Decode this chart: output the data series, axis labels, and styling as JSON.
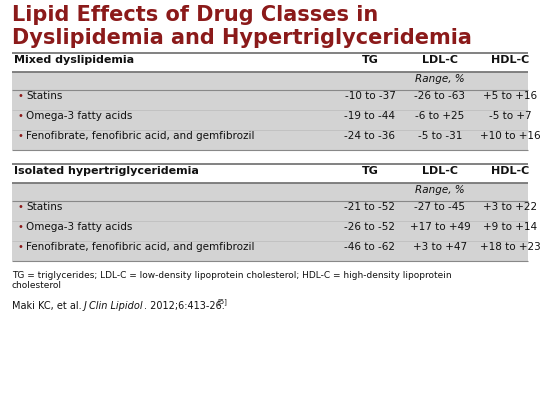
{
  "title_line1": "Lipid Effects of Drug Classes in",
  "title_line2": "Dyslipidemia and Hypertriglyceridemia",
  "title_color": "#8B1A1A",
  "bg_color": "#FFFFFF",
  "table_bg_light": "#D3D3D3",
  "section1_header": "Mixed dyslipidemia",
  "section2_header": "Isolated hypertriglyceridemia",
  "col_headers": [
    "TG",
    "LDL-C",
    "HDL-C"
  ],
  "range_label": "Range, %",
  "drugs": [
    "Statins",
    "Omega-3 fatty acids",
    "Fenofibrate, fenofibric acid, and gemfibrozil"
  ],
  "mixed_TG": [
    "-10 to -37",
    "-19 to -44",
    "-24 to -36"
  ],
  "mixed_LDL": [
    "-26 to -63",
    "-6 to +25",
    "-5 to -31"
  ],
  "mixed_HDL": [
    "+5 to +16",
    "-5 to +7",
    "+10 to +16"
  ],
  "iso_TG": [
    "-21 to -52",
    "-26 to -52",
    "-46 to -62"
  ],
  "iso_LDL": [
    "-27 to -45",
    "+17 to +49",
    "+3 to +47"
  ],
  "iso_HDL": [
    "+3 to +22",
    "+9 to +14",
    "+18 to +23"
  ],
  "footnote": "TG = triglycerides; LDL-C = low-density lipoprotein cholesterol; HDL-C = high-density lipoprotein\ncholesterol",
  "citation_plain": "Maki KC, et al. ",
  "citation_italic": "J Clin Lipidol",
  "citation_end": ". 2012;6:413-26.",
  "citation_super": "[5]"
}
